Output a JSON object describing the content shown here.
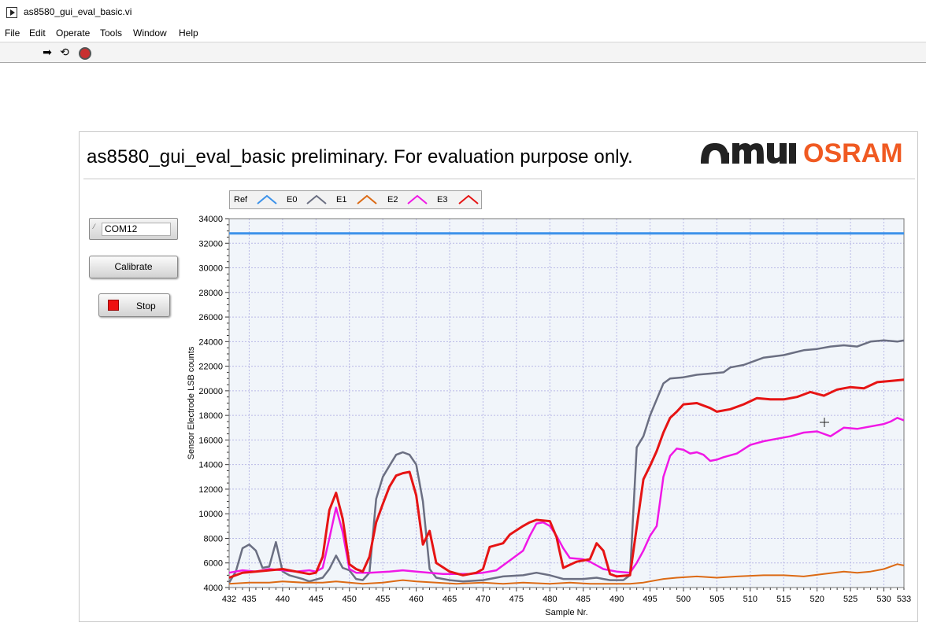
{
  "window": {
    "title": "as8580_gui_eval_basic.vi",
    "menu": [
      "File",
      "Edit",
      "Operate",
      "Tools",
      "Window",
      "Help"
    ],
    "toolbar_icons": [
      "run-arrow-icon",
      "run-continuously-icon",
      "abort-execution-icon"
    ]
  },
  "panel": {
    "title": "as8580_gui_eval_basic preliminary. For evaluation purpose only.",
    "logo_ams": "amu",
    "logo_osram": "OSRAM"
  },
  "controls": {
    "com_port": "COM12",
    "com_icon": "I/O",
    "calibrate_label": "Calibrate",
    "stop_label": "Stop"
  },
  "legend": {
    "labels": [
      "Ref",
      "E0",
      "E1",
      "E2",
      "E3"
    ]
  },
  "colors": {
    "Ref": "#3c92ea",
    "E0": "#6b6f82",
    "E1": "#dc6a14",
    "E2": "#f018e6",
    "E3": "#e61414",
    "plot_bg": "#f1f5fa",
    "grid": "#b9b9e6"
  },
  "chart_data": {
    "type": "line",
    "xlabel": "Sample Nr.",
    "ylabel": "Sensor Electrode LSB counts",
    "xlim": [
      432,
      533
    ],
    "ylim": [
      4000,
      34000
    ],
    "x_ticks": [
      432,
      435,
      440,
      445,
      450,
      455,
      460,
      465,
      470,
      475,
      480,
      485,
      490,
      495,
      500,
      505,
      510,
      515,
      520,
      525,
      530,
      533
    ],
    "y_ticks": [
      4000,
      6000,
      8000,
      10000,
      12000,
      14000,
      16000,
      18000,
      20000,
      22000,
      24000,
      26000,
      28000,
      30000,
      32000,
      34000
    ],
    "grid": true,
    "legend_position": "top-left",
    "series": [
      {
        "name": "Ref",
        "points": [
          [
            432,
            32800
          ],
          [
            533,
            32800
          ]
        ]
      },
      {
        "name": "E0",
        "points": [
          [
            432,
            4400
          ],
          [
            433,
            5300
          ],
          [
            434,
            7200
          ],
          [
            435,
            7500
          ],
          [
            436,
            7000
          ],
          [
            437,
            5600
          ],
          [
            438,
            5700
          ],
          [
            439,
            7700
          ],
          [
            440,
            5300
          ],
          [
            441,
            5000
          ],
          [
            443,
            4700
          ],
          [
            444,
            4500
          ],
          [
            446,
            4800
          ],
          [
            447,
            5500
          ],
          [
            448,
            6600
          ],
          [
            449,
            5600
          ],
          [
            450,
            5400
          ],
          [
            451,
            4700
          ],
          [
            452,
            4600
          ],
          [
            453,
            5200
          ],
          [
            454,
            11200
          ],
          [
            455,
            13000
          ],
          [
            456,
            13900
          ],
          [
            457,
            14800
          ],
          [
            458,
            15000
          ],
          [
            459,
            14800
          ],
          [
            460,
            14000
          ],
          [
            461,
            11000
          ],
          [
            462,
            5500
          ],
          [
            463,
            4800
          ],
          [
            465,
            4600
          ],
          [
            467,
            4500
          ],
          [
            470,
            4600
          ],
          [
            473,
            4900
          ],
          [
            476,
            5000
          ],
          [
            478,
            5200
          ],
          [
            480,
            5000
          ],
          [
            482,
            4700
          ],
          [
            485,
            4700
          ],
          [
            487,
            4800
          ],
          [
            488,
            4700
          ],
          [
            489,
            4600
          ],
          [
            491,
            4600
          ],
          [
            492,
            5000
          ],
          [
            493,
            15400
          ],
          [
            494,
            16300
          ],
          [
            495,
            18000
          ],
          [
            496,
            19300
          ],
          [
            497,
            20600
          ],
          [
            498,
            21000
          ],
          [
            500,
            21100
          ],
          [
            502,
            21300
          ],
          [
            504,
            21400
          ],
          [
            506,
            21500
          ],
          [
            507,
            21900
          ],
          [
            509,
            22100
          ],
          [
            512,
            22700
          ],
          [
            515,
            22900
          ],
          [
            518,
            23300
          ],
          [
            520,
            23400
          ],
          [
            522,
            23600
          ],
          [
            524,
            23700
          ],
          [
            526,
            23600
          ],
          [
            528,
            24000
          ],
          [
            530,
            24100
          ],
          [
            532,
            24000
          ],
          [
            533,
            24100
          ]
        ]
      },
      {
        "name": "E1",
        "points": [
          [
            432,
            4300
          ],
          [
            435,
            4400
          ],
          [
            438,
            4400
          ],
          [
            440,
            4500
          ],
          [
            443,
            4400
          ],
          [
            446,
            4400
          ],
          [
            448,
            4500
          ],
          [
            450,
            4400
          ],
          [
            452,
            4300
          ],
          [
            455,
            4400
          ],
          [
            458,
            4600
          ],
          [
            460,
            4500
          ],
          [
            463,
            4400
          ],
          [
            466,
            4300
          ],
          [
            470,
            4400
          ],
          [
            473,
            4300
          ],
          [
            476,
            4400
          ],
          [
            480,
            4300
          ],
          [
            483,
            4400
          ],
          [
            486,
            4300
          ],
          [
            489,
            4300
          ],
          [
            492,
            4300
          ],
          [
            494,
            4400
          ],
          [
            497,
            4700
          ],
          [
            499,
            4800
          ],
          [
            502,
            4900
          ],
          [
            505,
            4800
          ],
          [
            508,
            4900
          ],
          [
            512,
            5000
          ],
          [
            515,
            5000
          ],
          [
            518,
            4900
          ],
          [
            521,
            5100
          ],
          [
            524,
            5300
          ],
          [
            526,
            5200
          ],
          [
            528,
            5300
          ],
          [
            530,
            5500
          ],
          [
            532,
            5900
          ],
          [
            533,
            5800
          ]
        ]
      },
      {
        "name": "E2",
        "points": [
          [
            432,
            5200
          ],
          [
            434,
            5400
          ],
          [
            436,
            5300
          ],
          [
            438,
            5500
          ],
          [
            440,
            5400
          ],
          [
            442,
            5300
          ],
          [
            444,
            5400
          ],
          [
            445,
            5300
          ],
          [
            446,
            5600
          ],
          [
            447,
            8000
          ],
          [
            448,
            10500
          ],
          [
            449,
            8500
          ],
          [
            450,
            5500
          ],
          [
            451,
            5200
          ],
          [
            453,
            5200
          ],
          [
            456,
            5300
          ],
          [
            458,
            5400
          ],
          [
            460,
            5300
          ],
          [
            462,
            5200
          ],
          [
            464,
            5100
          ],
          [
            466,
            5100
          ],
          [
            468,
            5100
          ],
          [
            470,
            5200
          ],
          [
            472,
            5400
          ],
          [
            474,
            6200
          ],
          [
            476,
            7000
          ],
          [
            477,
            8200
          ],
          [
            478,
            9200
          ],
          [
            479,
            9300
          ],
          [
            480,
            9000
          ],
          [
            481,
            8200
          ],
          [
            482,
            7200
          ],
          [
            483,
            6400
          ],
          [
            485,
            6300
          ],
          [
            486,
            6100
          ],
          [
            488,
            5500
          ],
          [
            490,
            5300
          ],
          [
            492,
            5200
          ],
          [
            493,
            6000
          ],
          [
            494,
            7000
          ],
          [
            495,
            8200
          ],
          [
            496,
            9000
          ],
          [
            497,
            13000
          ],
          [
            498,
            14700
          ],
          [
            499,
            15300
          ],
          [
            500,
            15200
          ],
          [
            501,
            14900
          ],
          [
            502,
            15000
          ],
          [
            503,
            14800
          ],
          [
            504,
            14300
          ],
          [
            505,
            14400
          ],
          [
            506,
            14600
          ],
          [
            508,
            14900
          ],
          [
            510,
            15600
          ],
          [
            512,
            15900
          ],
          [
            514,
            16100
          ],
          [
            516,
            16300
          ],
          [
            518,
            16600
          ],
          [
            520,
            16700
          ],
          [
            522,
            16300
          ],
          [
            524,
            17000
          ],
          [
            526,
            16900
          ],
          [
            528,
            17100
          ],
          [
            530,
            17300
          ],
          [
            531,
            17500
          ],
          [
            532,
            17800
          ],
          [
            533,
            17600
          ]
        ]
      },
      {
        "name": "E3",
        "points": [
          [
            432,
            4800
          ],
          [
            434,
            5200
          ],
          [
            436,
            5300
          ],
          [
            438,
            5400
          ],
          [
            440,
            5500
          ],
          [
            442,
            5300
          ],
          [
            444,
            5100
          ],
          [
            445,
            5200
          ],
          [
            446,
            6500
          ],
          [
            447,
            10300
          ],
          [
            448,
            11700
          ],
          [
            449,
            9600
          ],
          [
            450,
            5900
          ],
          [
            451,
            5500
          ],
          [
            452,
            5300
          ],
          [
            453,
            6500
          ],
          [
            454,
            9300
          ],
          [
            455,
            10800
          ],
          [
            456,
            12200
          ],
          [
            457,
            13100
          ],
          [
            458,
            13300
          ],
          [
            459,
            13400
          ],
          [
            460,
            11500
          ],
          [
            461,
            7500
          ],
          [
            462,
            8600
          ],
          [
            463,
            6000
          ],
          [
            465,
            5300
          ],
          [
            467,
            5000
          ],
          [
            469,
            5200
          ],
          [
            470,
            5500
          ],
          [
            471,
            7300
          ],
          [
            473,
            7600
          ],
          [
            474,
            8300
          ],
          [
            476,
            9000
          ],
          [
            477,
            9300
          ],
          [
            478,
            9500
          ],
          [
            480,
            9400
          ],
          [
            481,
            8100
          ],
          [
            482,
            5600
          ],
          [
            484,
            6100
          ],
          [
            486,
            6300
          ],
          [
            487,
            7600
          ],
          [
            488,
            7000
          ],
          [
            489,
            5100
          ],
          [
            490,
            4900
          ],
          [
            492,
            5000
          ],
          [
            493,
            8900
          ],
          [
            494,
            12800
          ],
          [
            495,
            13900
          ],
          [
            496,
            15100
          ],
          [
            497,
            16600
          ],
          [
            498,
            17800
          ],
          [
            499,
            18300
          ],
          [
            500,
            18900
          ],
          [
            502,
            19000
          ],
          [
            504,
            18600
          ],
          [
            505,
            18300
          ],
          [
            507,
            18500
          ],
          [
            509,
            18900
          ],
          [
            511,
            19400
          ],
          [
            513,
            19300
          ],
          [
            515,
            19300
          ],
          [
            517,
            19500
          ],
          [
            519,
            19900
          ],
          [
            521,
            19600
          ],
          [
            523,
            20100
          ],
          [
            525,
            20300
          ],
          [
            527,
            20200
          ],
          [
            529,
            20700
          ],
          [
            531,
            20800
          ],
          [
            533,
            20900
          ]
        ]
      }
    ]
  }
}
